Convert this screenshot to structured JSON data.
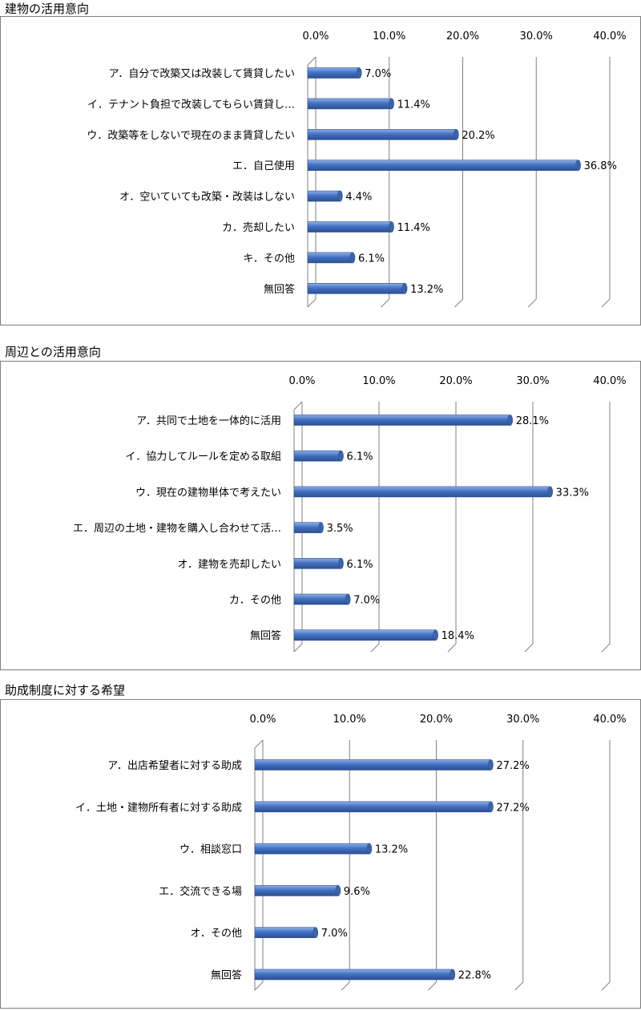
{
  "charts": [
    {
      "title": "建物の活用意向",
      "chart_data": {
        "type": "bar",
        "orientation": "horizontal",
        "categories": [
          "ア．自分で改築又は改装して賃貸したい",
          "イ．テナント負担で改装してもらい賃貸し…",
          "ウ．改築等をしないで現在のまま賃貸したい",
          "エ．自己使用",
          "オ．空いていても改築・改装はしない",
          "カ．売却したい",
          "キ．その他",
          "無回答"
        ],
        "values": [
          7.0,
          11.4,
          20.2,
          36.8,
          4.4,
          11.4,
          6.1,
          13.2
        ],
        "value_labels": [
          "7.0%",
          "11.4%",
          "20.2%",
          "36.8%",
          "4.4%",
          "11.4%",
          "6.1%",
          "13.2%"
        ],
        "ticks": [
          "0.0%",
          "10.0%",
          "20.0%",
          "30.0%",
          "40.0%"
        ],
        "xlim": [
          0,
          40
        ],
        "grid": true,
        "bar_color": "#4472c4"
      }
    },
    {
      "title": "周辺との活用意向",
      "chart_data": {
        "type": "bar",
        "orientation": "horizontal",
        "categories": [
          "ア．共同で土地を一体的に活用",
          "イ．協力してルールを定める取組",
          "ウ．現在の建物単体で考えたい",
          "エ．周辺の土地・建物を購入し合わせて活…",
          "オ．建物を売却したい",
          "カ．その他",
          "無回答"
        ],
        "values": [
          28.1,
          6.1,
          33.3,
          3.5,
          6.1,
          7.0,
          18.4
        ],
        "value_labels": [
          "28.1%",
          "6.1%",
          "33.3%",
          "3.5%",
          "6.1%",
          "7.0%",
          "18.4%"
        ],
        "ticks": [
          "0.0%",
          "10.0%",
          "20.0%",
          "30.0%",
          "40.0%"
        ],
        "xlim": [
          0,
          40
        ],
        "grid": true,
        "bar_color": "#4472c4"
      }
    },
    {
      "title": "助成制度に対する希望",
      "chart_data": {
        "type": "bar",
        "orientation": "horizontal",
        "categories": [
          "ア．出店希望者に対する助成",
          "イ．土地・建物所有者に対する助成",
          "ウ．相談窓口",
          "エ．交流できる場",
          "オ．その他",
          "無回答"
        ],
        "values": [
          27.2,
          27.2,
          13.2,
          9.6,
          7.0,
          22.8
        ],
        "value_labels": [
          "27.2%",
          "27.2%",
          "13.2%",
          "9.6%",
          "7.0%",
          "22.8%"
        ],
        "ticks": [
          "0.0%",
          "10.0%",
          "20.0%",
          "30.0%",
          "40.0%"
        ],
        "xlim": [
          0,
          40
        ],
        "grid": true,
        "bar_color": "#4472c4"
      }
    }
  ]
}
